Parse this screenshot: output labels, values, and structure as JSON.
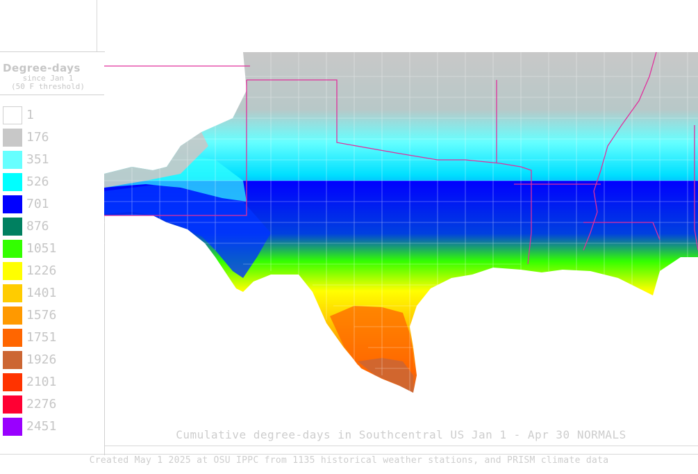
{
  "legend": {
    "title": "Degree-days",
    "subtitle1": "since Jan 1",
    "subtitle2": "(50 F threshold)",
    "items": [
      {
        "label": "1",
        "color": "#ffffff"
      },
      {
        "label": "176",
        "color": "#c8c8c8"
      },
      {
        "label": "351",
        "color": "#66ffff"
      },
      {
        "label": "526",
        "color": "#00ffff"
      },
      {
        "label": "701",
        "color": "#0000ff"
      },
      {
        "label": "876",
        "color": "#008060"
      },
      {
        "label": "1051",
        "color": "#33ff00"
      },
      {
        "label": "1226",
        "color": "#ffff00"
      },
      {
        "label": "1401",
        "color": "#ffcc00"
      },
      {
        "label": "1576",
        "color": "#ff9900"
      },
      {
        "label": "1751",
        "color": "#ff6600"
      },
      {
        "label": "1926",
        "color": "#cc6633"
      },
      {
        "label": "2101",
        "color": "#ff3300"
      },
      {
        "label": "2276",
        "color": "#ff0033"
      },
      {
        "label": "2451",
        "color": "#9900ff"
      }
    ]
  },
  "map": {
    "title": "Cumulative degree-days in Southcentral US Jan 1 - Apr 30 NORMALS",
    "boundary_color": "#e0309c",
    "county_color": "#ffffff"
  },
  "footer": {
    "credit": "Created May 1 2025 at OSU IPPC from 1135 historical weather stations, and PRISM climate data"
  }
}
